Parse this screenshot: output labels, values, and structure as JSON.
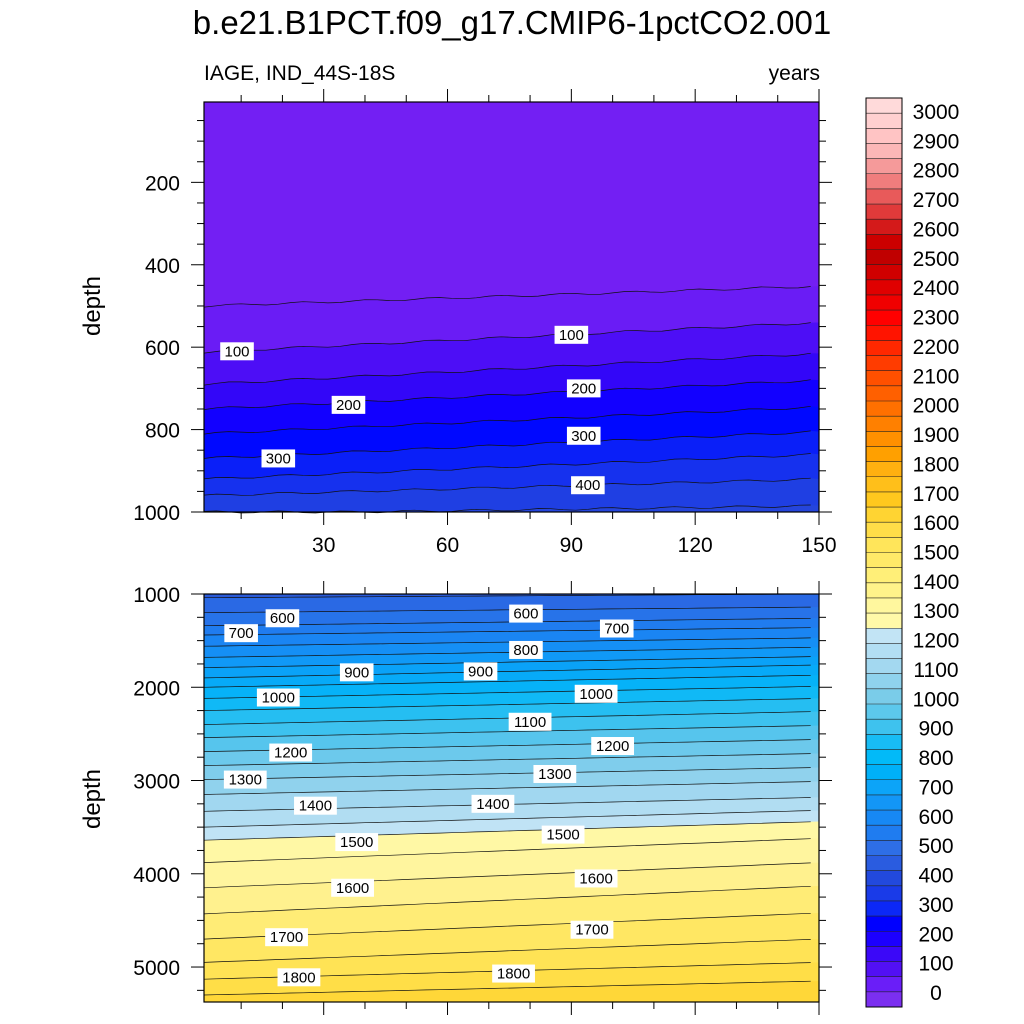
{
  "title": "b.e21.B1PCT.f09_g17.CMIP6-1pctCO2.001",
  "chart_data": [
    {
      "type": "contour",
      "panel": "top",
      "left_string": "IAGE, IND_44S-18S",
      "right_string": "years",
      "xlabel": "",
      "ylabel": "depth",
      "xlim": [
        1,
        150
      ],
      "ylim": [
        1000,
        5
      ],
      "x_ticks": [
        "30",
        "60",
        "90",
        "120",
        "150"
      ],
      "y_ticks": [
        "200",
        "400",
        "600",
        "800",
        "1000"
      ],
      "contour_levels": [
        0,
        50,
        100,
        150,
        200,
        250,
        300,
        350,
        400,
        450
      ],
      "contour_labels": [
        {
          "text": "100",
          "x": 9,
          "y": 610
        },
        {
          "text": "100",
          "x": 90,
          "y": 570
        },
        {
          "text": "200",
          "x": 36,
          "y": 740
        },
        {
          "text": "200",
          "x": 93,
          "y": 700
        },
        {
          "text": "300",
          "x": 19,
          "y": 870
        },
        {
          "text": "300",
          "x": 93,
          "y": 815
        },
        {
          "text": "400",
          "x": 94,
          "y": 935
        }
      ]
    },
    {
      "type": "contour",
      "panel": "bottom",
      "xlabel": "",
      "ylabel": "depth",
      "xlim": [
        1,
        150
      ],
      "ylim": [
        1000,
        5375
      ],
      "y_ticks": [
        "1000",
        "2000",
        "3000",
        "4000",
        "5000"
      ],
      "contour_levels": [
        550,
        600,
        650,
        700,
        750,
        800,
        850,
        900,
        950,
        1000,
        1050,
        1100,
        1150,
        1200,
        1250,
        1300,
        1350,
        1400,
        1450,
        1500,
        1550,
        1600,
        1650,
        1700,
        1750,
        1800,
        1850
      ],
      "contour_labels": [
        {
          "text": "600",
          "x": 20,
          "y": 1260
        },
        {
          "text": "700",
          "x": 10,
          "y": 1420
        },
        {
          "text": "600",
          "x": 79,
          "y": 1210
        },
        {
          "text": "700",
          "x": 101,
          "y": 1370
        },
        {
          "text": "800",
          "x": 79,
          "y": 1600
        },
        {
          "text": "900",
          "x": 38,
          "y": 1840
        },
        {
          "text": "900",
          "x": 68,
          "y": 1830
        },
        {
          "text": "1000",
          "x": 19,
          "y": 2110
        },
        {
          "text": "1000",
          "x": 96,
          "y": 2070
        },
        {
          "text": "1100",
          "x": 80,
          "y": 2370
        },
        {
          "text": "1200",
          "x": 22,
          "y": 2700
        },
        {
          "text": "1200",
          "x": 100,
          "y": 2630
        },
        {
          "text": "1300",
          "x": 11,
          "y": 2990
        },
        {
          "text": "1300",
          "x": 86,
          "y": 2930
        },
        {
          "text": "1400",
          "x": 28,
          "y": 3270
        },
        {
          "text": "1400",
          "x": 71,
          "y": 3250
        },
        {
          "text": "1500",
          "x": 38,
          "y": 3660
        },
        {
          "text": "1500",
          "x": 88,
          "y": 3580
        },
        {
          "text": "1600",
          "x": 37,
          "y": 4150
        },
        {
          "text": "1600",
          "x": 96,
          "y": 4050
        },
        {
          "text": "1700",
          "x": 21,
          "y": 4680
        },
        {
          "text": "1700",
          "x": 95,
          "y": 4600
        },
        {
          "text": "1800",
          "x": 24,
          "y": 5110
        },
        {
          "text": "1800",
          "x": 76,
          "y": 5070
        }
      ]
    }
  ],
  "colorbar": {
    "labels": [
      "3000",
      "2900",
      "2800",
      "2700",
      "2600",
      "2500",
      "2400",
      "2300",
      "2200",
      "2100",
      "2000",
      "1900",
      "1800",
      "1700",
      "1600",
      "1500",
      "1400",
      "1300",
      "1200",
      "1100",
      "1000",
      "900",
      "800",
      "700",
      "600",
      "500",
      "400",
      "300",
      "200",
      "100",
      "0"
    ],
    "colors": [
      "#7b2ff0",
      "#6a1ef8",
      "#5210f4",
      "#3b08f8",
      "#1c00ff",
      "#0000ff",
      "#0c28f6",
      "#1a3be8",
      "#2249dd",
      "#2a5ce0",
      "#2e6ee6",
      "#1f7cf0",
      "#1788f4",
      "#1396f6",
      "#0ca4f8",
      "#00b0f8",
      "#02baf8",
      "#18bcf4",
      "#3ec2ee",
      "#5cc8ec",
      "#7acce9",
      "#8fd2ed",
      "#a3d8f0",
      "#b2def3",
      "#c2e4f5",
      "#fff9a8",
      "#fff79e",
      "#fff38a",
      "#ffef78",
      "#ffe968",
      "#ffe55a",
      "#ffdd48",
      "#ffd432",
      "#ffc81e",
      "#ffbf1a",
      "#ffb010",
      "#ffa000",
      "#ff9000",
      "#ff8000",
      "#ff7000",
      "#ff6000",
      "#ff5000",
      "#ff3c00",
      "#ff2800",
      "#ff1400",
      "#ff0000",
      "#f00000",
      "#e00000",
      "#d00000",
      "#c00000",
      "#cc0000",
      "#d41a1a",
      "#e03a3a",
      "#e85a5a",
      "#f07d7d",
      "#f59a9a",
      "#fbb7b7",
      "#ffc4c4",
      "#ffd0d0",
      "#ffdada"
    ]
  }
}
